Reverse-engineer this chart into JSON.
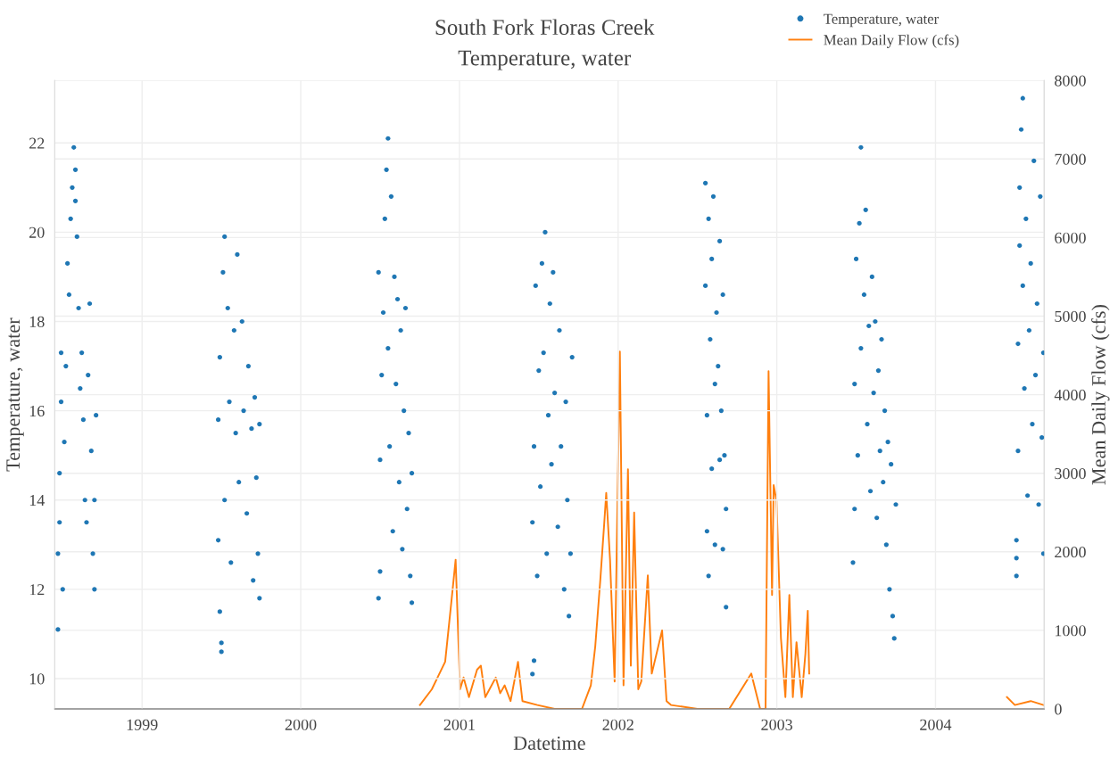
{
  "chart_data": {
    "type": "scatter",
    "title": "South Fork Floras Creek",
    "subtitle": "Temperature, water",
    "xlabel": "Datetime",
    "ylabel": "Temperature, water",
    "y2label": "Mean Daily Flow (cfs)",
    "xlim": [
      1998.45,
      2004.685
    ],
    "xticks": [
      1999,
      2000,
      2001,
      2002,
      2003,
      2004
    ],
    "ylim": [
      9.32,
      23.4
    ],
    "yticks": [
      10,
      12,
      14,
      16,
      18,
      20,
      22
    ],
    "y2lim": [
      0,
      8000
    ],
    "y2ticks": [
      0,
      1000,
      2000,
      3000,
      4000,
      5000,
      6000,
      7000,
      8000
    ],
    "grid": true,
    "legend": "top right",
    "marker": "circle",
    "series": [
      {
        "name": "Temperature, water",
        "color": "#1f77b4",
        "x": [
          1998.47,
          1998.47,
          1998.48,
          1998.48,
          1998.49,
          1998.49,
          1998.5,
          1998.51,
          1998.52,
          1998.53,
          1998.54,
          1998.55,
          1998.56,
          1998.57,
          1998.58,
          1998.58,
          1998.59,
          1998.6,
          1998.61,
          1998.62,
          1998.63,
          1998.64,
          1998.65,
          1998.66,
          1998.67,
          1998.68,
          1998.69,
          1998.7,
          1998.7,
          1998.71,
          1999.48,
          1999.48,
          1999.49,
          1999.49,
          1999.5,
          1999.5,
          1999.51,
          1999.52,
          1999.52,
          1999.54,
          1999.55,
          1999.56,
          1999.58,
          1999.59,
          1999.6,
          1999.61,
          1999.63,
          1999.64,
          1999.66,
          1999.67,
          1999.69,
          1999.7,
          1999.71,
          1999.72,
          1999.73,
          1999.74,
          1999.74,
          2000.49,
          2000.49,
          2000.5,
          2000.5,
          2000.51,
          2000.52,
          2000.53,
          2000.54,
          2000.55,
          2000.55,
          2000.56,
          2000.57,
          2000.58,
          2000.59,
          2000.6,
          2000.61,
          2000.62,
          2000.63,
          2000.64,
          2000.65,
          2000.66,
          2000.67,
          2000.68,
          2000.69,
          2000.7,
          2000.7,
          2001.46,
          2001.46,
          2001.47,
          2001.47,
          2001.48,
          2001.49,
          2001.5,
          2001.51,
          2001.52,
          2001.53,
          2001.54,
          2001.55,
          2001.56,
          2001.57,
          2001.58,
          2001.59,
          2001.6,
          2001.62,
          2001.63,
          2001.64,
          2001.66,
          2001.67,
          2001.68,
          2001.69,
          2001.7,
          2001.71,
          2002.55,
          2002.55,
          2002.56,
          2002.56,
          2002.57,
          2002.57,
          2002.58,
          2002.59,
          2002.59,
          2002.6,
          2002.61,
          2002.61,
          2002.62,
          2002.63,
          2002.64,
          2002.64,
          2002.65,
          2002.66,
          2002.66,
          2002.67,
          2002.68,
          2002.68,
          2003.48,
          2003.49,
          2003.49,
          2003.5,
          2003.51,
          2003.52,
          2003.53,
          2003.53,
          2003.55,
          2003.56,
          2003.57,
          2003.58,
          2003.59,
          2003.6,
          2003.61,
          2003.62,
          2003.63,
          2003.64,
          2003.65,
          2003.66,
          2003.67,
          2003.68,
          2003.69,
          2003.7,
          2003.71,
          2003.72,
          2003.73,
          2003.74,
          2003.75,
          2004.51,
          2004.51,
          2004.51,
          2004.52,
          2004.52,
          2004.53,
          2004.53,
          2004.54,
          2004.55,
          2004.55,
          2004.56,
          2004.57,
          2004.58,
          2004.59,
          2004.6,
          2004.61,
          2004.62,
          2004.63,
          2004.64,
          2004.65,
          2004.66,
          2004.67,
          2004.68,
          2004.68
        ],
        "values": [
          11.1,
          12.8,
          13.5,
          14.6,
          16.2,
          17.3,
          12.0,
          15.3,
          17.0,
          19.3,
          18.6,
          20.3,
          21.0,
          21.9,
          21.4,
          20.7,
          19.9,
          18.3,
          16.5,
          17.3,
          15.8,
          14.0,
          13.5,
          16.8,
          18.4,
          15.1,
          12.8,
          12.0,
          14.0,
          15.9,
          15.8,
          13.1,
          11.5,
          17.2,
          10.8,
          10.6,
          19.1,
          19.9,
          14.0,
          18.3,
          16.2,
          12.6,
          17.8,
          15.5,
          19.5,
          14.4,
          18.0,
          16.0,
          13.7,
          17.0,
          15.6,
          12.2,
          16.3,
          14.5,
          12.8,
          11.8,
          15.7,
          11.8,
          19.1,
          14.9,
          12.4,
          16.8,
          18.2,
          20.3,
          21.4,
          22.1,
          17.4,
          15.2,
          20.8,
          13.3,
          19.0,
          16.6,
          18.5,
          14.4,
          17.8,
          12.9,
          16.0,
          18.3,
          13.8,
          15.5,
          12.3,
          11.7,
          14.6,
          10.1,
          13.5,
          10.4,
          15.2,
          18.8,
          12.3,
          16.9,
          14.3,
          19.3,
          17.3,
          20.0,
          12.8,
          15.9,
          18.4,
          14.8,
          19.1,
          16.4,
          13.4,
          17.8,
          15.2,
          12.0,
          16.2,
          14.0,
          11.4,
          12.8,
          17.2,
          21.1,
          18.8,
          15.9,
          13.3,
          12.3,
          20.3,
          17.6,
          19.4,
          14.7,
          20.8,
          16.6,
          13.0,
          18.2,
          17.0,
          14.9,
          19.8,
          16.0,
          12.9,
          18.6,
          15.0,
          11.6,
          13.8,
          12.6,
          13.8,
          16.6,
          19.4,
          15.0,
          20.2,
          21.9,
          17.4,
          18.6,
          20.5,
          15.7,
          17.9,
          14.2,
          19.0,
          16.4,
          18.0,
          13.6,
          16.9,
          15.1,
          17.6,
          14.4,
          16.0,
          13.0,
          15.3,
          12.0,
          14.8,
          11.4,
          10.9,
          13.9,
          12.3,
          12.7,
          13.1,
          15.1,
          17.5,
          19.7,
          21.0,
          22.3,
          23.0,
          18.8,
          16.5,
          20.3,
          14.1,
          17.8,
          19.3,
          15.7,
          21.6,
          16.8,
          18.4,
          13.9,
          20.8,
          15.4,
          17.3,
          12.8
        ]
      },
      {
        "name": "Mean Daily Flow (cfs)",
        "type": "line",
        "axis": "y2",
        "color": "#ff7f0e",
        "marker": "none",
        "line_style": "solid",
        "x": [
          2000.751,
          2000.826,
          2000.91,
          2000.951,
          2000.976,
          2001.004,
          2001.026,
          2001.06,
          2001.111,
          2001.135,
          2001.163,
          2001.229,
          2001.257,
          2001.285,
          2001.322,
          2001.369,
          2001.397,
          2001.491,
          2001.6,
          2001.772,
          2001.828,
          2001.856,
          2001.888,
          2001.912,
          2001.925,
          2001.949,
          2001.978,
          2002.011,
          2002.034,
          2002.062,
          2002.08,
          2002.101,
          2002.127,
          2002.146,
          2002.187,
          2002.212,
          2002.277,
          2002.305,
          2002.333,
          2002.5,
          2002.7,
          2002.839,
          2002.895,
          2002.929,
          2002.948,
          2002.97,
          2002.98,
          2002.998,
          2003.026,
          2003.054,
          2003.079,
          2003.101,
          2003.124,
          2003.157,
          2003.18,
          2003.195,
          2003.204,
          2003.5,
          2004.45,
          2004.5,
          2004.6,
          2004.68
        ],
        "values": [
          50,
          250,
          600,
          1400,
          1900,
          250,
          400,
          150,
          500,
          550,
          150,
          400,
          200,
          300,
          100,
          600,
          100,
          50,
          0,
          0,
          300,
          800,
          1650,
          2350,
          2750,
          1900,
          350,
          4550,
          300,
          3050,
          550,
          2500,
          250,
          350,
          1700,
          450,
          1000,
          100,
          50,
          0,
          0,
          450,
          0,
          0,
          4300,
          1450,
          2850,
          2650,
          900,
          150,
          1450,
          150,
          850,
          150,
          700,
          1250,
          450,
          null,
          150,
          50,
          100,
          50
        ]
      }
    ]
  }
}
